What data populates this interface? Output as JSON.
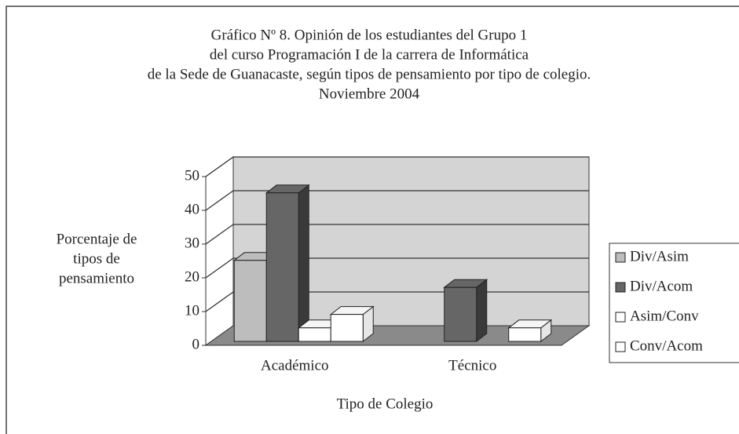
{
  "chart_data": {
    "type": "bar3d",
    "title": [
      "Gráfico Nº 8. Opinión de los estudiantes del Grupo 1",
      "del curso Programación I de la carrera de Informática",
      "de la Sede de Guanacaste, según tipos de pensamiento por tipo de colegio.",
      "Noviembre 2004"
    ],
    "ylabel": [
      "Porcentaje de",
      "tipos de",
      "pensamiento"
    ],
    "xlabel": "Tipo de Colegio",
    "categories": [
      "Académico",
      "Técnico"
    ],
    "series": [
      {
        "name": "Div/Asim",
        "color": "#bdbdbd",
        "values": [
          24,
          0
        ]
      },
      {
        "name": "Div/Acom",
        "color": "#666666",
        "values": [
          44,
          16
        ]
      },
      {
        "name": "Asim/Conv",
        "color": "#ffffff",
        "values": [
          4,
          0
        ]
      },
      {
        "name": "Conv/Acom",
        "color": "#ffffff",
        "values": [
          8,
          4
        ]
      }
    ],
    "ylim": [
      0,
      50
    ],
    "yticks": [
      0,
      10,
      20,
      30,
      40,
      50
    ],
    "grid": true,
    "legend": "right"
  }
}
